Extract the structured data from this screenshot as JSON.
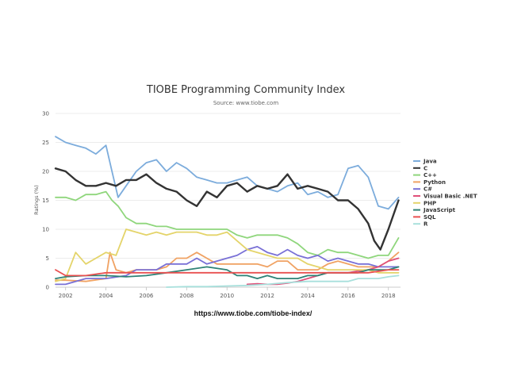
{
  "chart_data": {
    "type": "line",
    "title": "TIOBE Programming Community Index",
    "subtitle": "Source: www.tiobe.com",
    "ylabel": "Ratings (%)",
    "xlabel": "",
    "xlim": [
      2001.5,
      2018.6
    ],
    "ylim": [
      0,
      30
    ],
    "x_ticks": [
      "2002",
      "2004",
      "2006",
      "2008",
      "2010",
      "2012",
      "2014",
      "2016",
      "2018"
    ],
    "y_ticks": [
      "0",
      "5",
      "10",
      "15",
      "20",
      "25",
      "30"
    ],
    "grid": true,
    "legend_position": "right",
    "series": [
      {
        "name": "Java",
        "color": "#7cacdc",
        "x": [
          2001.5,
          2002,
          2002.5,
          2003,
          2003.5,
          2004,
          2004.3,
          2004.6,
          2005,
          2005.5,
          2006,
          2006.5,
          2007,
          2007.5,
          2008,
          2008.5,
          2009,
          2009.5,
          2010,
          2010.5,
          2011,
          2011.5,
          2012,
          2012.5,
          2013,
          2013.5,
          2014,
          2014.5,
          2015,
          2015.5,
          2016,
          2016.5,
          2017,
          2017.5,
          2018,
          2018.5
        ],
        "y": [
          26,
          25,
          24.5,
          24,
          23,
          24.5,
          20,
          15.5,
          17.5,
          20,
          21.5,
          22,
          20,
          21.5,
          20.5,
          19,
          18.5,
          18,
          18,
          18.5,
          19,
          17.5,
          17,
          16.5,
          17.5,
          18,
          16,
          16.5,
          15.5,
          16,
          20.5,
          21,
          19,
          14,
          13.5,
          15.5
        ]
      },
      {
        "name": "C",
        "color": "#333333",
        "x": [
          2001.5,
          2002,
          2002.5,
          2003,
          2003.5,
          2004,
          2004.5,
          2005,
          2005.5,
          2006,
          2006.5,
          2007,
          2007.5,
          2008,
          2008.5,
          2009,
          2009.5,
          2010,
          2010.5,
          2011,
          2011.5,
          2012,
          2012.5,
          2013,
          2013.5,
          2014,
          2014.5,
          2015,
          2015.5,
          2016,
          2016.5,
          2017,
          2017.3,
          2017.6,
          2018,
          2018.5
        ],
        "y": [
          20.5,
          20,
          18.5,
          17.5,
          17.5,
          18,
          17.5,
          18.5,
          18.5,
          19.5,
          18,
          17,
          16.5,
          15,
          14,
          16.5,
          15.5,
          17.5,
          18,
          16.5,
          17.5,
          17,
          17.5,
          19.5,
          17,
          17.5,
          17,
          16.5,
          15,
          15,
          13.5,
          11,
          8,
          6.5,
          10,
          15
        ]
      },
      {
        "name": "C++",
        "color": "#8fd67c",
        "x": [
          2001.5,
          2002,
          2002.5,
          2003,
          2003.5,
          2004,
          2004.3,
          2004.6,
          2005,
          2005.5,
          2006,
          2006.5,
          2007,
          2007.5,
          2008,
          2008.5,
          2009,
          2009.5,
          2010,
          2010.5,
          2011,
          2011.5,
          2012,
          2012.5,
          2013,
          2013.5,
          2014,
          2014.5,
          2015,
          2015.5,
          2016,
          2016.5,
          2017,
          2017.5,
          2018,
          2018.5
        ],
        "y": [
          15.5,
          15.5,
          15,
          16,
          16,
          16.5,
          15,
          14,
          12,
          11,
          11,
          10.5,
          10.5,
          10,
          10,
          10,
          10,
          10,
          10,
          9,
          8.5,
          9,
          9,
          9,
          8.5,
          7.5,
          6,
          5.5,
          6.5,
          6,
          6,
          5.5,
          5,
          5.5,
          5.5,
          8.5
        ]
      },
      {
        "name": "Python",
        "color": "#f0a263",
        "x": [
          2001.5,
          2002,
          2003,
          2004,
          2004.2,
          2004.5,
          2005,
          2005.5,
          2006,
          2006.5,
          2007,
          2007.5,
          2008,
          2008.5,
          2009,
          2009.5,
          2010,
          2010.5,
          2011,
          2011.5,
          2012,
          2012.5,
          2013,
          2013.5,
          2014,
          2014.5,
          2015,
          2015.5,
          2016,
          2016.5,
          2017,
          2017.5,
          2018,
          2018.5
        ],
        "y": [
          1.2,
          1.2,
          1,
          1.5,
          6,
          3,
          2.5,
          3,
          3,
          3,
          3.5,
          5,
          5,
          6,
          5,
          4,
          4,
          4,
          4,
          4,
          3.5,
          4.5,
          4.5,
          3,
          3,
          3,
          4,
          4.5,
          4,
          3.5,
          3.5,
          3.5,
          4.5,
          6
        ]
      },
      {
        "name": "C#",
        "color": "#7970d6",
        "x": [
          2001.5,
          2002,
          2003,
          2004,
          2005,
          2005.5,
          2006,
          2006.5,
          2007,
          2007.5,
          2008,
          2008.5,
          2009,
          2009.5,
          2010,
          2010.5,
          2011,
          2011.5,
          2012,
          2012.5,
          2013,
          2013.5,
          2014,
          2014.5,
          2015,
          2015.5,
          2016,
          2016.5,
          2017,
          2017.5,
          2018,
          2018.5
        ],
        "y": [
          0.5,
          0.5,
          1.5,
          1.5,
          2,
          3,
          3,
          3,
          4,
          4,
          4,
          5,
          4,
          4.5,
          5,
          5.5,
          6.5,
          7,
          6,
          5.5,
          6.5,
          5.5,
          5,
          5.5,
          4.5,
          5,
          4.5,
          4,
          4,
          3.5,
          3.5,
          3.5
        ]
      },
      {
        "name": "Visual Basic .NET",
        "color": "#e0507a",
        "x": [
          2011,
          2011.5,
          2012,
          2012.5,
          2013,
          2013.5,
          2014,
          2014.5,
          2015,
          2015.5,
          2016,
          2016.5,
          2017,
          2017.5,
          2018,
          2018.5
        ],
        "y": [
          0.5,
          0.6,
          0.5,
          0.5,
          0.7,
          1,
          1.5,
          2,
          2.5,
          2.5,
          2.5,
          2.8,
          3,
          3.5,
          4.5,
          5
        ]
      },
      {
        "name": "PHP",
        "color": "#e4d46a",
        "x": [
          2001.5,
          2002,
          2002.5,
          2003,
          2003.5,
          2004,
          2004.5,
          2005,
          2005.5,
          2006,
          2006.5,
          2007,
          2007.5,
          2008,
          2008.5,
          2009,
          2009.5,
          2010,
          2010.5,
          2011,
          2011.5,
          2012,
          2012.5,
          2013,
          2013.5,
          2014,
          2014.5,
          2015,
          2015.5,
          2016,
          2016.5,
          2017,
          2017.5,
          2018,
          2018.5
        ],
        "y": [
          1,
          1.5,
          6,
          4,
          5,
          6,
          5.5,
          10,
          9.5,
          9,
          9.5,
          9,
          9.5,
          9.5,
          9.5,
          9,
          9,
          9.5,
          8,
          6.5,
          6,
          5.5,
          5,
          5,
          5,
          4,
          3.5,
          3,
          3,
          3,
          3,
          3,
          2.5,
          2.5,
          2.5
        ]
      },
      {
        "name": "JavaScript",
        "color": "#2e8276",
        "x": [
          2001.5,
          2002,
          2003,
          2004,
          2005,
          2006,
          2007,
          2008,
          2009,
          2010,
          2010.5,
          2011,
          2011.5,
          2012,
          2012.5,
          2013,
          2013.5,
          2014,
          2014.5,
          2015,
          2015.5,
          2016,
          2016.5,
          2017,
          2017.5,
          2018,
          2018.5
        ],
        "y": [
          1.5,
          1.8,
          2,
          2,
          1.8,
          2,
          2.5,
          3,
          3.5,
          3,
          2,
          2,
          1.5,
          2,
          1.5,
          1.5,
          1.5,
          2,
          2,
          2.5,
          2.5,
          2.5,
          2.5,
          3,
          3,
          3,
          3.5
        ]
      },
      {
        "name": "SQL",
        "color": "#e85050",
        "x": [
          2001.5,
          2002,
          2003,
          2004,
          2005,
          2006,
          2007,
          2008,
          2009,
          2010,
          2011,
          2012,
          2013,
          2014,
          2015,
          2016,
          2017,
          2018,
          2018.5
        ],
        "y": [
          3,
          2,
          2,
          2.5,
          2.5,
          2.5,
          2.5,
          2.5,
          2.5,
          2.5,
          2.5,
          2.5,
          2.5,
          2.5,
          2.5,
          2.5,
          2.5,
          3,
          3
        ]
      },
      {
        "name": "R",
        "color": "#a8e0dc",
        "x": [
          2007,
          2008,
          2009,
          2010,
          2011,
          2012,
          2013,
          2014,
          2015,
          2016,
          2016.5,
          2017,
          2017.5,
          2018,
          2018.5
        ],
        "y": [
          0,
          0.1,
          0.1,
          0.2,
          0.3,
          0.5,
          0.8,
          1,
          1,
          1,
          1.5,
          1.5,
          1.5,
          1.8,
          2
        ]
      }
    ]
  },
  "footer": {
    "url": "https://www.tiobe.com/tiobe-index/"
  }
}
